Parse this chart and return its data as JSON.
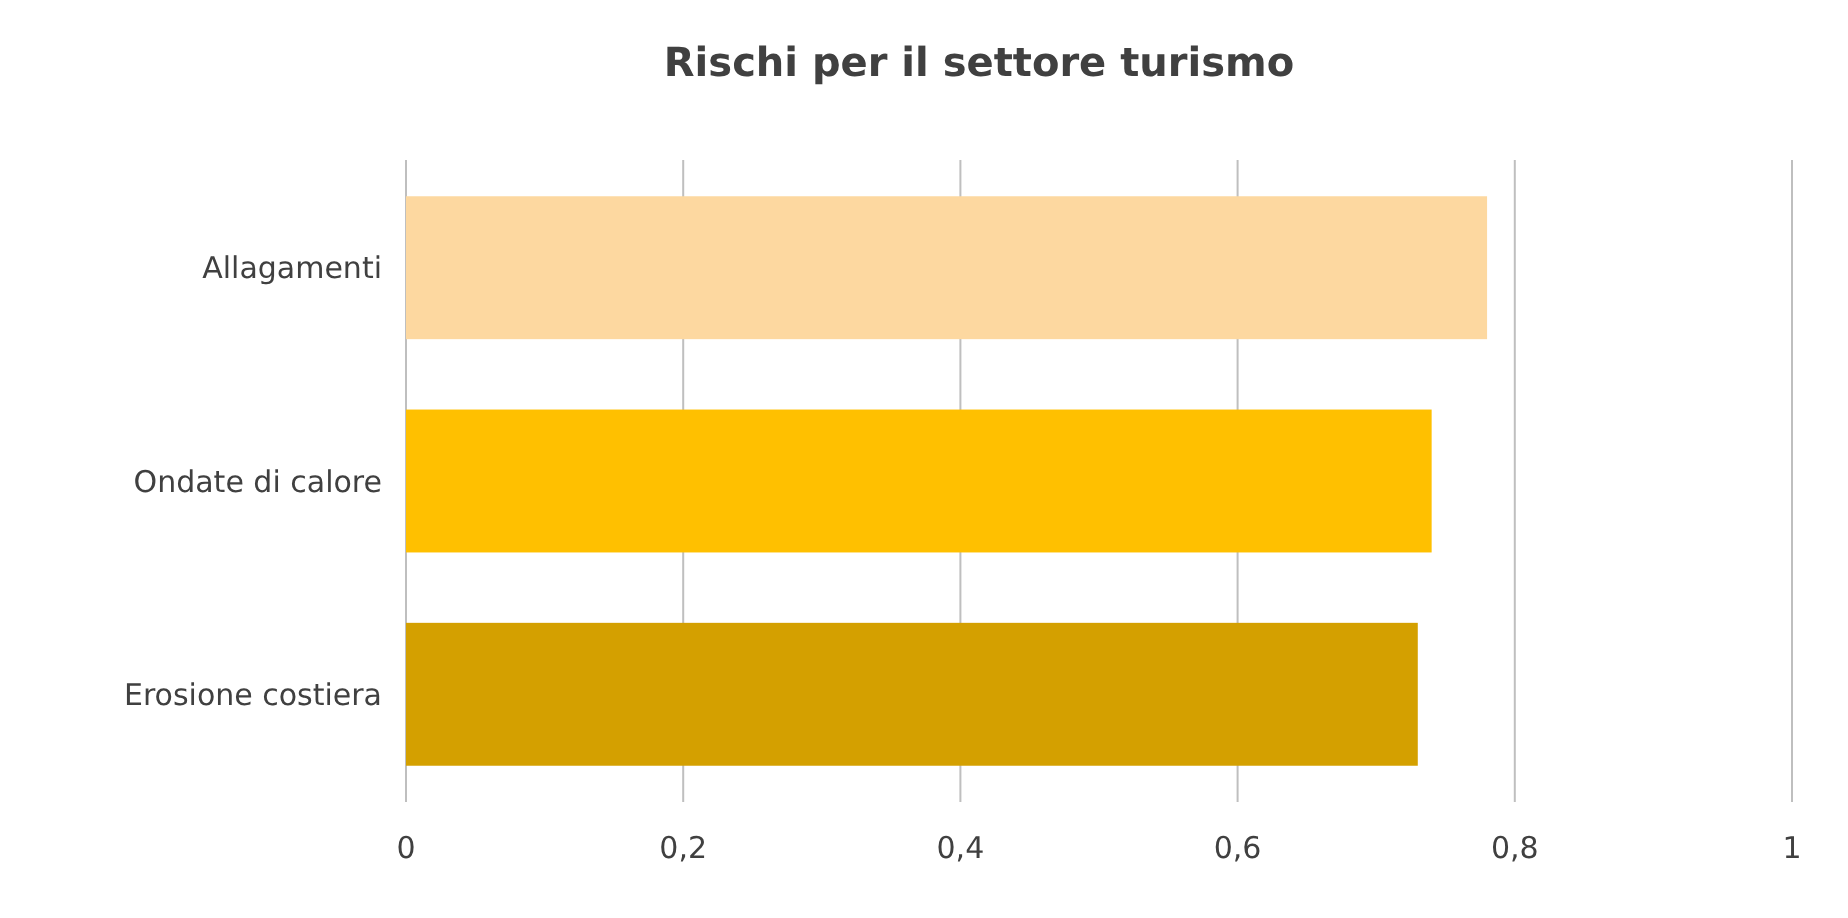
{
  "chart_data": {
    "type": "bar",
    "orientation": "horizontal",
    "title": "Rischi per il settore turismo",
    "categories": [
      "Allagamenti",
      "Ondate di calore",
      "Erosione costiera"
    ],
    "values": [
      0.78,
      0.74,
      0.73
    ],
    "colors": [
      "#fdd8a0",
      "#ffc000",
      "#d4a000"
    ],
    "xlim": [
      0,
      1
    ],
    "xticks": [
      {
        "value": 0,
        "label": "0"
      },
      {
        "value": 0.2,
        "label": "0,2"
      },
      {
        "value": 0.4,
        "label": "0,4"
      },
      {
        "value": 0.6,
        "label": "0,6"
      },
      {
        "value": 0.8,
        "label": "0,8"
      },
      {
        "value": 1,
        "label": "1"
      }
    ],
    "grid": "x"
  }
}
